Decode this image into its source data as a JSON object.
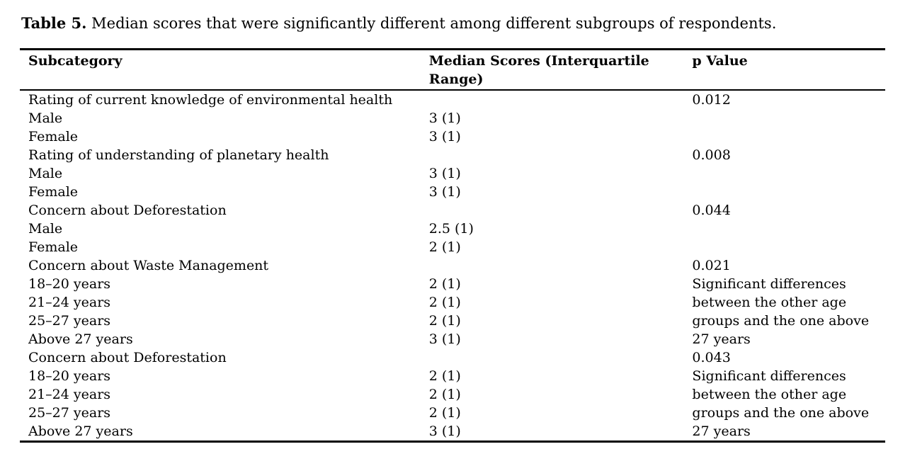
{
  "caption": {
    "label": "Table 5.",
    "text": "Median scores that were significantly different among different subgroups of respondents."
  },
  "table": {
    "columns": {
      "subcategory": "Subcategory",
      "median": "Median Scores (Interquartile Range)",
      "p_value": "p Value"
    },
    "rows": [
      {
        "subcategory": "Rating of current knowledge of environmental health",
        "median": "",
        "p_value": "0.012"
      },
      {
        "subcategory": "Male",
        "median": "3 (1)",
        "p_value": ""
      },
      {
        "subcategory": "Female",
        "median": "3 (1)",
        "p_value": ""
      },
      {
        "subcategory": "Rating of understanding of planetary health",
        "median": "",
        "p_value": "0.008"
      },
      {
        "subcategory": "Male",
        "median": "3 (1)",
        "p_value": ""
      },
      {
        "subcategory": "Female",
        "median": "3 (1)",
        "p_value": ""
      },
      {
        "subcategory": "Concern about Deforestation",
        "median": "",
        "p_value": "0.044"
      },
      {
        "subcategory": "Male",
        "median": "2.5 (1)",
        "p_value": ""
      },
      {
        "subcategory": "Female",
        "median": "2 (1)",
        "p_value": ""
      },
      {
        "subcategory": "Concern about Waste Management",
        "median": "",
        "p_value": "0.021"
      },
      {
        "subcategory": "18–20 years",
        "median": "2 (1)",
        "p_value": "Significant differences"
      },
      {
        "subcategory": "21–24 years",
        "median": "2 (1)",
        "p_value": "between the other age"
      },
      {
        "subcategory": "25–27 years",
        "median": "2 (1)",
        "p_value": "groups and the one above"
      },
      {
        "subcategory": "Above 27 years",
        "median": "3 (1)",
        "p_value": "27 years"
      },
      {
        "subcategory": "Concern about Deforestation",
        "median": "",
        "p_value": "0.043"
      },
      {
        "subcategory": "18–20 years",
        "median": "2 (1)",
        "p_value": "Significant differences"
      },
      {
        "subcategory": "21–24 years",
        "median": "2 (1)",
        "p_value": "between the other age"
      },
      {
        "subcategory": "25–27 years",
        "median": "2 (1)",
        "p_value": "groups and the one above"
      },
      {
        "subcategory": "Above 27 years",
        "median": "3 (1)",
        "p_value": "27 years"
      }
    ]
  }
}
